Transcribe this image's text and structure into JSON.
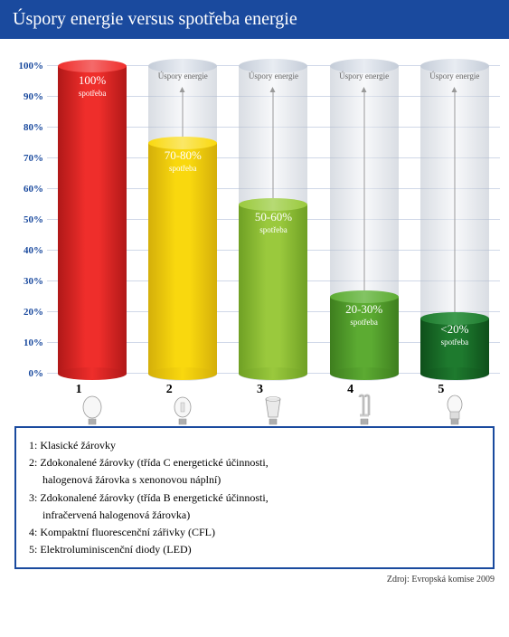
{
  "title": "Úspory energie versus spotřeba energie",
  "header_bg": "#1a4a9e",
  "header_color": "#ffffff",
  "axis_color": "#1a4a9e",
  "grid_color": "#d0d8e8",
  "y_ticks": [
    "0%",
    "10%",
    "20%",
    "30%",
    "40%",
    "50%",
    "60%",
    "70%",
    "80%",
    "90%",
    "100%"
  ],
  "y_max": 100,
  "savings_label": "Úspory energie",
  "consumption_label": "spotřeba",
  "bars": [
    {
      "num": "1",
      "pct_label": "100%",
      "height_pct": 100,
      "fill_light": "#ef2e2b",
      "fill_dark": "#b01818",
      "fill_top": "#f46a6a",
      "has_bg": false,
      "label_top_pct": 8
    },
    {
      "num": "2",
      "pct_label": "70-80%",
      "height_pct": 75,
      "fill_light": "#f9d80e",
      "fill_dark": "#d4af0a",
      "fill_top": "#fbe766",
      "has_bg": true,
      "arrow_from_pct": 75,
      "label_top_pct": 6
    },
    {
      "num": "3",
      "pct_label": "50-60%",
      "height_pct": 55,
      "fill_light": "#9ac93d",
      "fill_dark": "#6fa024",
      "fill_top": "#b6da74",
      "has_bg": true,
      "arrow_from_pct": 55,
      "label_top_pct": 6
    },
    {
      "num": "4",
      "pct_label": "20-30%",
      "height_pct": 25,
      "fill_light": "#5cab32",
      "fill_dark": "#3e7e1e",
      "fill_top": "#83c464",
      "has_bg": true,
      "arrow_from_pct": 25,
      "label_top_pct": 6
    },
    {
      "num": "5",
      "pct_label": "<20%",
      "height_pct": 18,
      "fill_light": "#1e7a2e",
      "fill_dark": "#0e4f1a",
      "fill_top": "#3d9a4e",
      "has_bg": true,
      "arrow_from_pct": 18,
      "label_top_pct": 4
    }
  ],
  "legend": [
    "1:  Klasické žárovky",
    "2:  Zdokonalené žárovky (třída C energetické účinnosti, halogenová žárovka s xenonovou náplní)",
    "3:  Zdokonalené žárovky (třída B energetické účinnosti, infračervená halogenová žárovka)",
    "4:  Kompaktní fluorescenční zářivky (CFL)",
    "5:  Elektroluminiscenční diody (LED)"
  ],
  "source": "Zdroj: Evropská komise 2009",
  "bulb_icons": {
    "1": "incandescent",
    "2": "halogen",
    "3": "halogen-reflector",
    "4": "cfl",
    "5": "led"
  }
}
